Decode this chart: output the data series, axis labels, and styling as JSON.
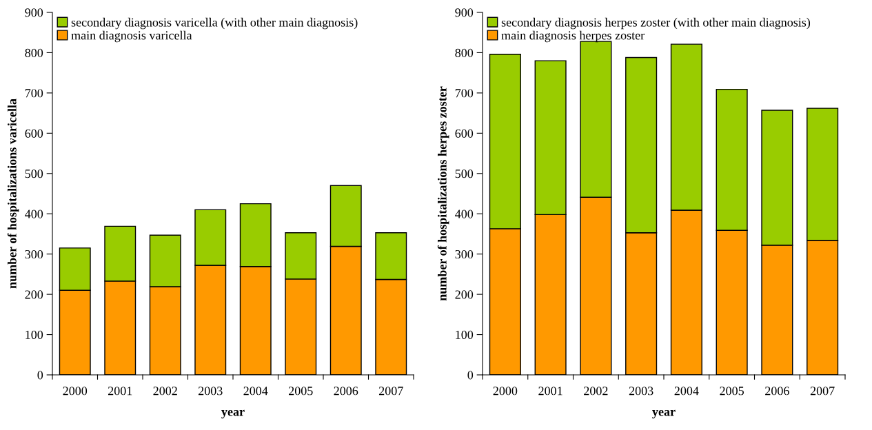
{
  "chart_data": [
    {
      "type": "bar",
      "stacked": true,
      "xlabel": "year",
      "ylabel": "number of hospitalizations varicella",
      "categories": [
        "2000",
        "2001",
        "2002",
        "2003",
        "2004",
        "2005",
        "2006",
        "2007"
      ],
      "ylim": [
        0,
        900
      ],
      "yticks": [
        0,
        100,
        200,
        300,
        400,
        500,
        600,
        700,
        800,
        900
      ],
      "legend": "top left",
      "series": [
        {
          "name": "main diagnosis varicella",
          "color": "#ff9900",
          "values": [
            210,
            233,
            219,
            272,
            269,
            238,
            319,
            237
          ]
        },
        {
          "name": "secondary diagnosis varicella (with other main diagnosis)",
          "color": "#99cc00",
          "values": [
            105,
            136,
            128,
            138,
            156,
            115,
            151,
            116
          ]
        }
      ]
    },
    {
      "type": "bar",
      "stacked": true,
      "xlabel": "year",
      "ylabel": "number of hospitalizations herpes zoster",
      "categories": [
        "2000",
        "2001",
        "2002",
        "2003",
        "2004",
        "2005",
        "2006",
        "2007"
      ],
      "ylim": [
        0,
        900
      ],
      "yticks": [
        0,
        100,
        200,
        300,
        400,
        500,
        600,
        700,
        800,
        900
      ],
      "legend": "top left",
      "series": [
        {
          "name": "main diagnosis herpes zoster",
          "color": "#ff9900",
          "values": [
            363,
            398,
            441,
            353,
            409,
            359,
            322,
            334
          ]
        },
        {
          "name": "secondary diagnosis herpes zoster (with other main diagnosis)",
          "color": "#99cc00",
          "values": [
            433,
            382,
            387,
            435,
            412,
            350,
            335,
            328
          ]
        }
      ]
    }
  ]
}
